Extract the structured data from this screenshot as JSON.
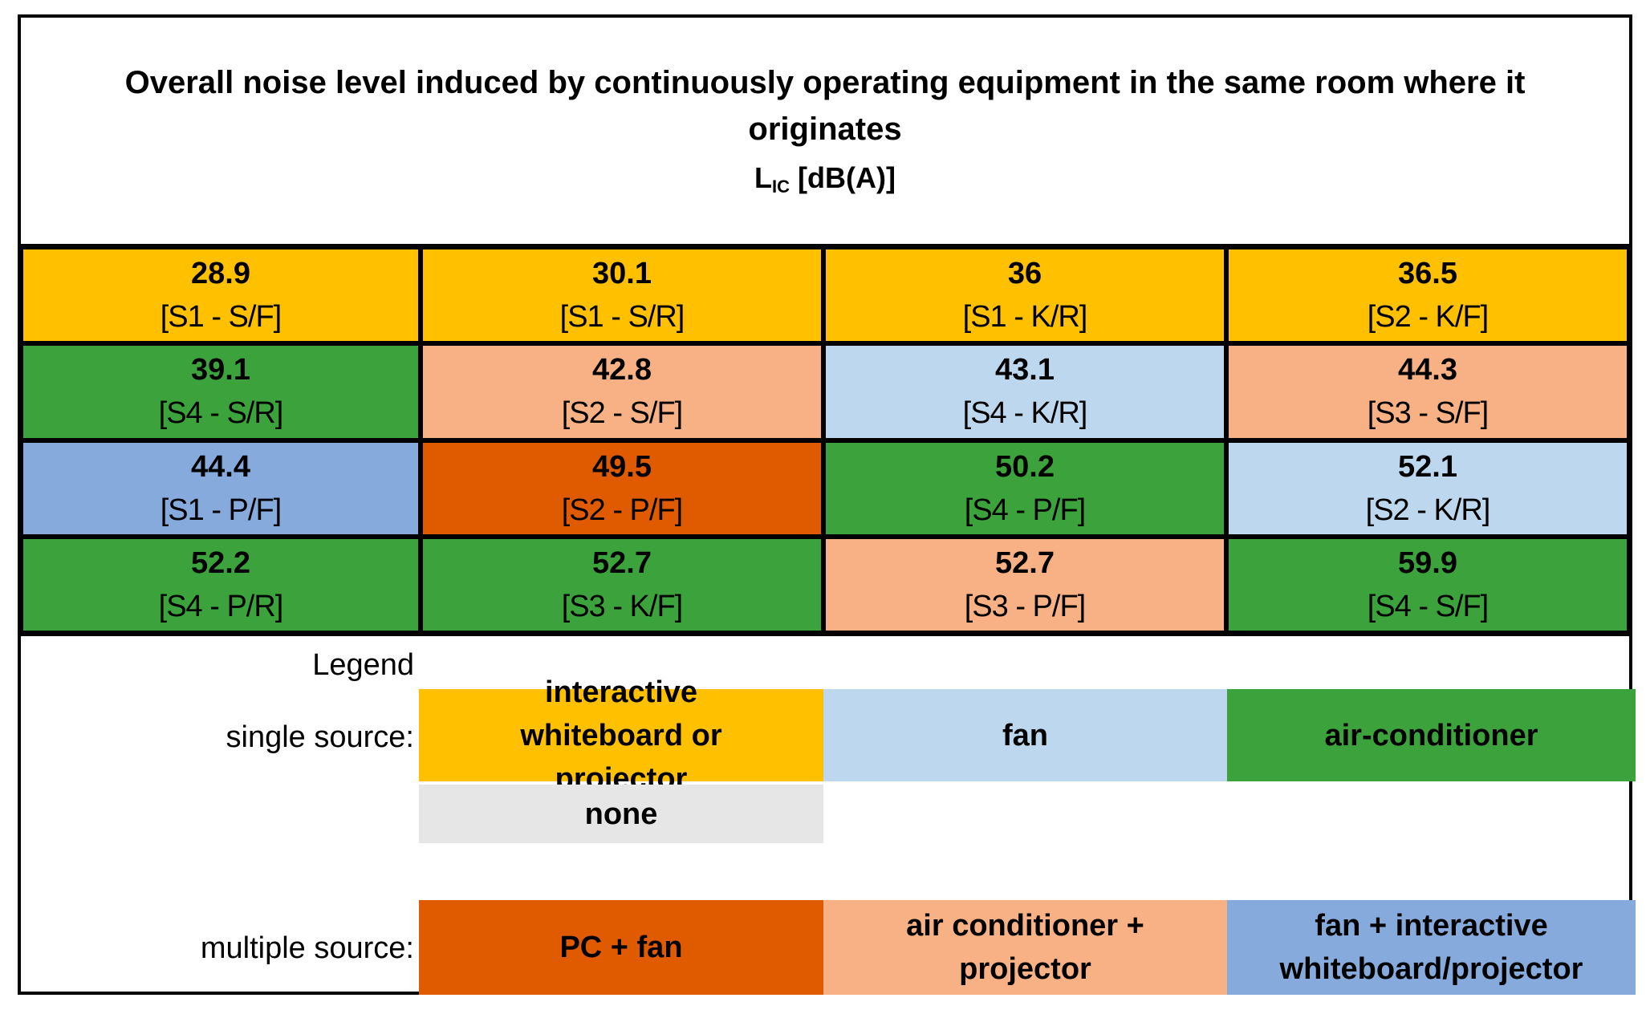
{
  "chart_data": {
    "type": "table",
    "title": "Overall noise level induced by continuously operating equipment in the same room where it originates",
    "unit": {
      "symbol": "L",
      "subscript": "IC",
      "suffix": " [dB(A)]"
    },
    "columns": 4,
    "cells": [
      {
        "value": "28.9",
        "label": "[S1 - S/F]",
        "source": "interactive-whiteboard-or-projector"
      },
      {
        "value": "30.1",
        "label": "[S1 - S/R]",
        "source": "interactive-whiteboard-or-projector"
      },
      {
        "value": "36",
        "label": "[S1 - K/R]",
        "source": "interactive-whiteboard-or-projector"
      },
      {
        "value": "36.5",
        "label": "[S2 - K/F]",
        "source": "interactive-whiteboard-or-projector"
      },
      {
        "value": "39.1",
        "label": "[S4 - S/R]",
        "source": "air-conditioner"
      },
      {
        "value": "42.8",
        "label": "[S2 - S/F]",
        "source": "air-conditioner-plus-projector"
      },
      {
        "value": "43.1",
        "label": "[S4 - K/R]",
        "source": "fan"
      },
      {
        "value": "44.3",
        "label": "[S3 - S/F]",
        "source": "air-conditioner-plus-projector"
      },
      {
        "value": "44.4",
        "label": "[S1 - P/F]",
        "source": "fan-plus-whiteboard-projector"
      },
      {
        "value": "49.5",
        "label": "[S2 - P/F]",
        "source": "pc-plus-fan"
      },
      {
        "value": "50.2",
        "label": "[S4 - P/F]",
        "source": "air-conditioner"
      },
      {
        "value": "52.1",
        "label": "[S2 - K/R]",
        "source": "fan"
      },
      {
        "value": "52.2",
        "label": "[S4 - P/R]",
        "source": "air-conditioner"
      },
      {
        "value": "52.7",
        "label": "[S3 - K/F]",
        "source": "air-conditioner"
      },
      {
        "value": "52.7",
        "label": "[S3 - P/F]",
        "source": "air-conditioner-plus-projector"
      },
      {
        "value": "59.9",
        "label": "[S4 - S/F]",
        "source": "air-conditioner"
      }
    ],
    "legend": {
      "heading": "Legend",
      "single_label": "single source:",
      "multiple_label": "multiple source:",
      "single": [
        {
          "key": "interactive-whiteboard-or-projector",
          "text": "interactive whiteboard or projector",
          "color": "#FFC000"
        },
        {
          "key": "fan",
          "text": "fan",
          "color": "#BDD7EE"
        },
        {
          "key": "air-conditioner",
          "text": "air-conditioner",
          "color": "#3CA33C"
        },
        {
          "key": "none",
          "text": "none",
          "color": "#E7E6E6"
        }
      ],
      "multiple": [
        {
          "key": "pc-plus-fan",
          "text": "PC + fan",
          "color": "#E05A00"
        },
        {
          "key": "air-conditioner-plus-projector",
          "text": "air conditioner + projector",
          "color": "#F8B184"
        },
        {
          "key": "fan-plus-whiteboard-projector",
          "text": "fan + interactive whiteboard/projector",
          "color": "#86AADC"
        }
      ]
    }
  }
}
